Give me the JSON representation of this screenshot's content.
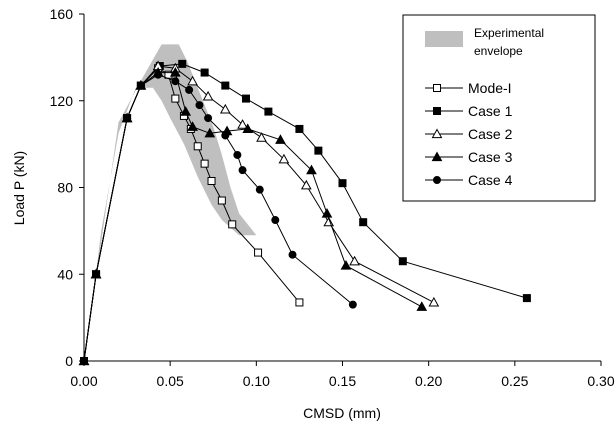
{
  "chart_data": {
    "type": "line",
    "title": "",
    "xlabel": "CMSD (mm)",
    "ylabel": "Load P (kN)",
    "xlim": [
      0,
      0.3
    ],
    "ylim": [
      0,
      160
    ],
    "xticks": [
      "0.00",
      "0.05",
      "0.10",
      "0.15",
      "0.20",
      "0.25",
      "0.30"
    ],
    "yticks": [
      "0",
      "40",
      "80",
      "120",
      "160"
    ],
    "grid": false,
    "legend_position": "top-right",
    "envelope": {
      "name": "Experimental envelope",
      "name_lines": [
        "Experimental",
        "envelope"
      ],
      "color": "#bfbfbf",
      "polygon": [
        [
          0.0,
          0.0
        ],
        [
          0.02,
          110
        ],
        [
          0.035,
          132
        ],
        [
          0.045,
          146
        ],
        [
          0.055,
          146
        ],
        [
          0.06,
          138
        ],
        [
          0.065,
          128
        ],
        [
          0.07,
          118
        ],
        [
          0.075,
          108
        ],
        [
          0.08,
          95
        ],
        [
          0.085,
          80
        ],
        [
          0.09,
          68
        ],
        [
          0.1,
          58
        ],
        [
          0.09,
          58
        ],
        [
          0.08,
          65
        ],
        [
          0.074,
          72
        ],
        [
          0.066,
          85
        ],
        [
          0.058,
          100
        ],
        [
          0.05,
          112
        ],
        [
          0.045,
          120
        ],
        [
          0.04,
          126
        ],
        [
          0.03,
          126
        ],
        [
          0.02,
          105
        ],
        [
          0.01,
          60
        ],
        [
          0.003,
          15
        ]
      ]
    },
    "series": [
      {
        "name": "Mode-I",
        "marker": "square-open",
        "x": [
          0.0,
          0.007,
          0.025,
          0.033,
          0.043,
          0.049,
          0.053,
          0.058,
          0.062,
          0.066,
          0.07,
          0.074,
          0.08,
          0.086,
          0.101,
          0.125
        ],
        "y": [
          0,
          40,
          112,
          127,
          135,
          132,
          121,
          113,
          107,
          99,
          91,
          83,
          74,
          63,
          50,
          27
        ]
      },
      {
        "name": "Case 1",
        "marker": "square-filled",
        "x": [
          0.0,
          0.007,
          0.025,
          0.033,
          0.044,
          0.057,
          0.07,
          0.082,
          0.094,
          0.107,
          0.125,
          0.136,
          0.15,
          0.162,
          0.185,
          0.257
        ],
        "y": [
          0,
          40,
          112,
          127,
          136,
          137,
          133,
          127,
          121,
          115,
          107,
          97,
          82,
          64,
          46,
          29
        ]
      },
      {
        "name": "Case 2",
        "marker": "triangle-open",
        "x": [
          0.0,
          0.007,
          0.025,
          0.033,
          0.043,
          0.053,
          0.063,
          0.072,
          0.082,
          0.092,
          0.103,
          0.116,
          0.129,
          0.142,
          0.157,
          0.203
        ],
        "y": [
          0,
          40,
          112,
          127,
          136,
          135,
          129,
          122,
          116,
          109,
          103,
          93,
          81,
          64,
          46,
          27
        ]
      },
      {
        "name": "Case 3",
        "marker": "triangle-filled",
        "x": [
          0.0,
          0.007,
          0.025,
          0.033,
          0.043,
          0.053,
          0.059,
          0.063,
          0.073,
          0.083,
          0.095,
          0.114,
          0.132,
          0.141,
          0.152,
          0.196
        ],
        "y": [
          0,
          40,
          112,
          127,
          133,
          133,
          115,
          108,
          105,
          106,
          107,
          102,
          88,
          68,
          44,
          25
        ]
      },
      {
        "name": "Case 4",
        "marker": "circle-filled",
        "x": [
          0.0,
          0.007,
          0.025,
          0.033,
          0.043,
          0.053,
          0.061,
          0.067,
          0.072,
          0.082,
          0.089,
          0.092,
          0.102,
          0.111,
          0.121,
          0.156
        ],
        "y": [
          0,
          40,
          112,
          127,
          132,
          129,
          125,
          118,
          112,
          104,
          95,
          88,
          79,
          65,
          49,
          26
        ]
      }
    ]
  }
}
